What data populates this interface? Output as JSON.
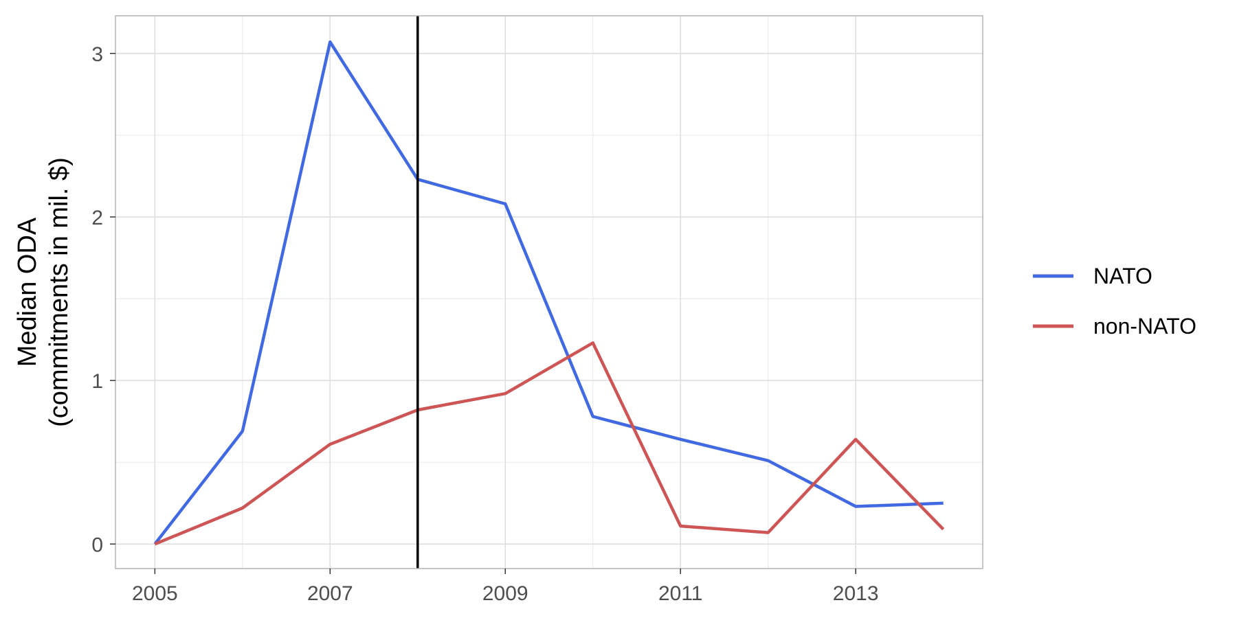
{
  "chart_data": {
    "type": "line",
    "title": "",
    "xlabel": "",
    "ylabel": "Median ODA\n(commitments in mil. $)",
    "x": [
      2005,
      2006,
      2007,
      2008,
      2009,
      2010,
      2011,
      2012,
      2013,
      2014
    ],
    "xlim": [
      2004.55,
      2014.45
    ],
    "ylim": [
      -0.15,
      3.23
    ],
    "xticks": [
      2005,
      2007,
      2009,
      2011,
      2013
    ],
    "yticks": [
      0,
      1,
      2,
      3
    ],
    "grid": true,
    "legend_position": "right",
    "reference_line": {
      "x": 2008,
      "color": "#000000"
    },
    "series": [
      {
        "name": "NATO",
        "color": "#4169E1",
        "values": [
          0.0,
          0.69,
          3.07,
          2.23,
          2.08,
          0.78,
          0.64,
          0.51,
          0.23,
          0.25
        ]
      },
      {
        "name": "non-NATO",
        "color": "#CD5555",
        "values": [
          0.0,
          0.22,
          0.61,
          0.82,
          0.92,
          1.23,
          0.11,
          0.07,
          0.64,
          0.09
        ]
      }
    ]
  }
}
